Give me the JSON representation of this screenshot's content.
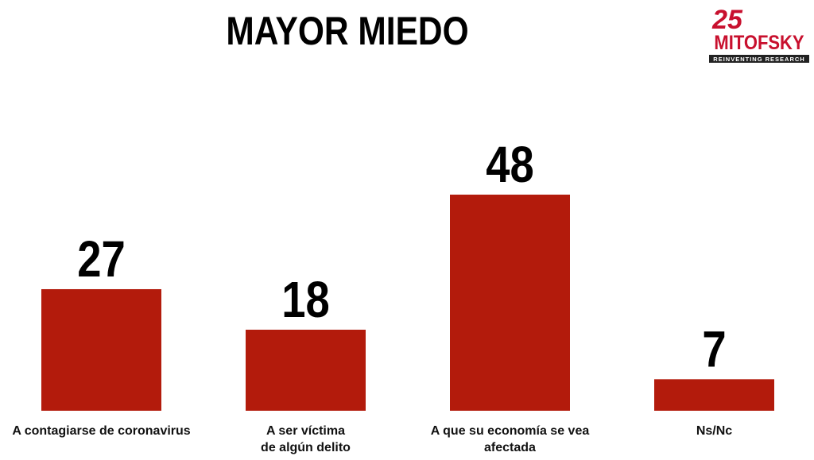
{
  "chart_data": {
    "type": "bar",
    "title": "MAYOR MIEDO",
    "categories": [
      "A contagiarse de coronavirus",
      "A ser víctima\nde algún delito",
      "A que su economía se vea\nafectada",
      "Ns/Nc"
    ],
    "values": [
      27,
      18,
      48,
      7
    ],
    "color": "#b31b0c"
  },
  "logo": {
    "number": "25",
    "name": "MITOFSKY",
    "tagline": "REINVENTING RESEARCH"
  }
}
